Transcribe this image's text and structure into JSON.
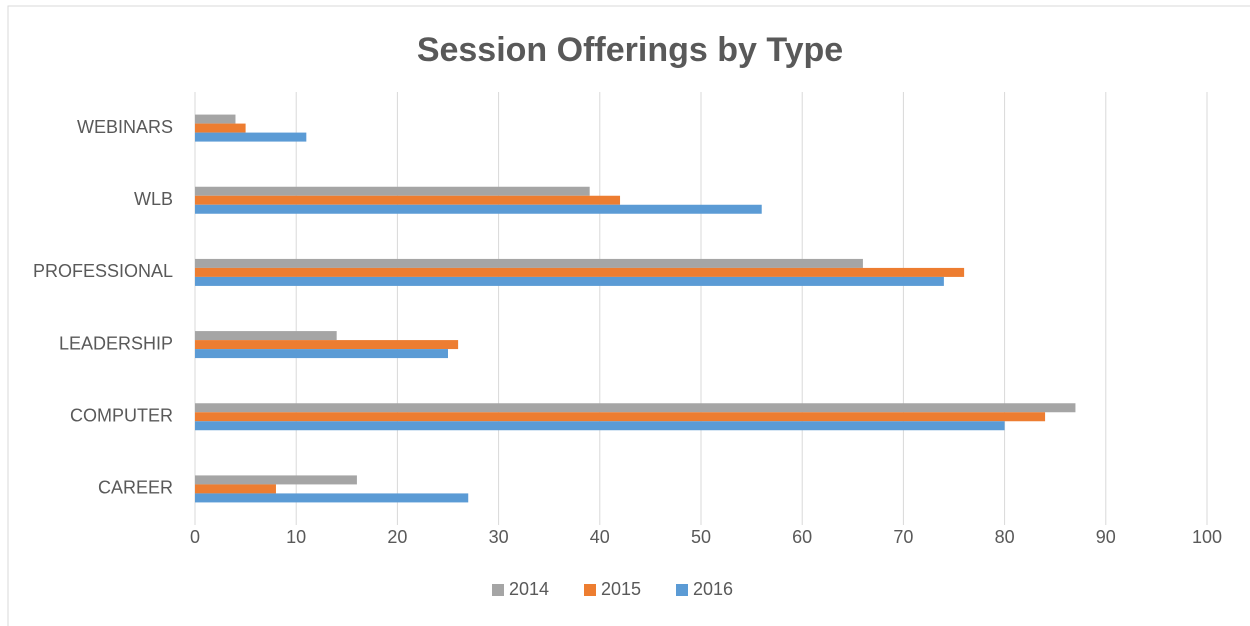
{
  "chart_data": {
    "type": "hbar",
    "title": "Session Offerings by Type",
    "categories": [
      "CAREER",
      "COMPUTER",
      "LEADERSHIP",
      "PROFESSIONAL",
      "WLB",
      "WEBINARS"
    ],
    "series": [
      {
        "name": "2014",
        "color": "#a5a5a5",
        "values": [
          16,
          87,
          14,
          66,
          39,
          4
        ]
      },
      {
        "name": "2015",
        "color": "#ed7d31",
        "values": [
          8,
          84,
          26,
          76,
          42,
          5
        ]
      },
      {
        "name": "2016",
        "color": "#5b9bd5",
        "values": [
          27,
          80,
          25,
          74,
          56,
          11
        ]
      }
    ],
    "xlim": [
      0,
      100
    ],
    "xticks": [
      0,
      10,
      20,
      30,
      40,
      50,
      60,
      70,
      80,
      90,
      100
    ],
    "grid": true,
    "legend": "bottom"
  }
}
